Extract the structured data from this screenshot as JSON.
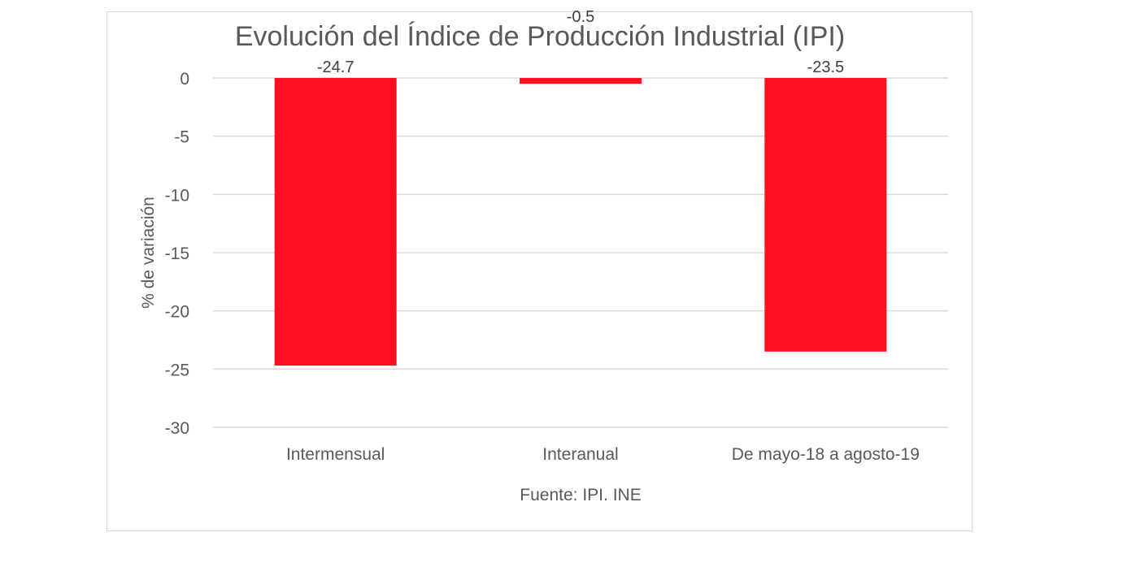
{
  "chart_data": {
    "type": "bar",
    "title": "Evolución del Índice de Producción Industrial (IPI)",
    "xlabel": "Fuente: IPI. INE",
    "ylabel": "% de variación",
    "categories": [
      "Intermensual",
      "Interanual",
      "De mayo-18 a agosto-19"
    ],
    "values": [
      -24.7,
      -0.5,
      -23.5
    ],
    "data_labels": [
      "-24.7",
      "-0.5",
      "-23.5"
    ],
    "ylim": [
      -30,
      0
    ],
    "yticks": [
      0,
      -5,
      -10,
      -15,
      -20,
      -25,
      -30
    ],
    "grid": true,
    "legend": "none",
    "bar_color": "#ff0f1f"
  }
}
